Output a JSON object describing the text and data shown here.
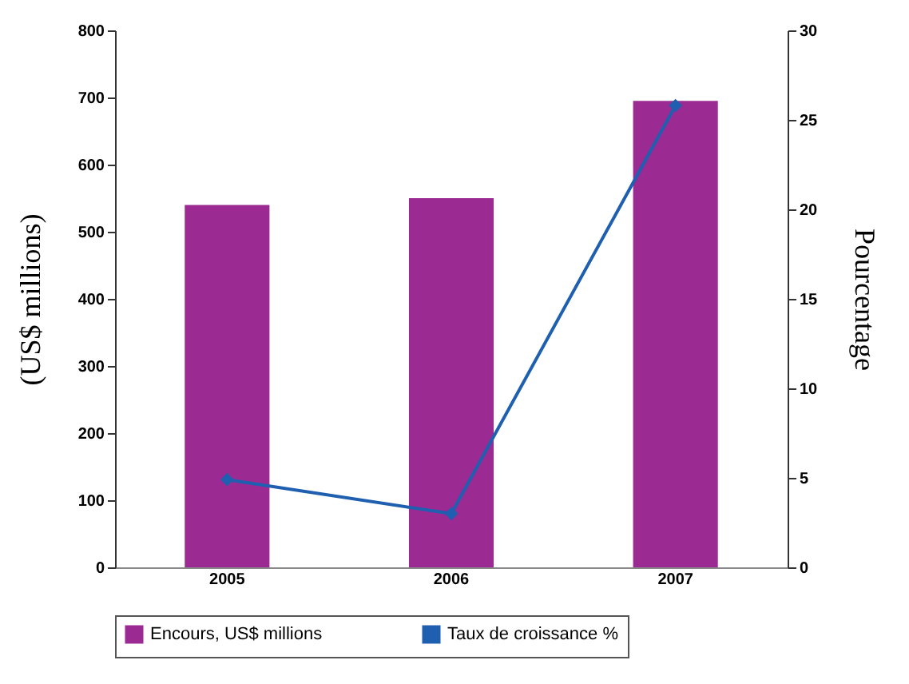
{
  "chart_data": {
    "type": "bar",
    "categories": [
      "2005",
      "2006",
      "2007"
    ],
    "ylabel": "(US$ millions)",
    "y2label": "Pourcentage",
    "ylim": [
      0,
      800
    ],
    "yticks": [
      0,
      100,
      200,
      300,
      400,
      500,
      600,
      700,
      800
    ],
    "y2lim": [
      0,
      30
    ],
    "y2ticks": [
      0,
      5,
      10,
      15,
      20,
      25,
      30
    ],
    "series": [
      {
        "name": "Encours, US$ millions",
        "color": "#9b2a93",
        "values": [
          540,
          550,
          695
        ]
      },
      {
        "name": "Taux de croissance %",
        "type": "line",
        "axis": "y2",
        "color": "#1f5fb0",
        "values": [
          4.9,
          3.0,
          25.8
        ]
      }
    ],
    "marker": "diamond",
    "grid": false,
    "legend": "bottom"
  }
}
